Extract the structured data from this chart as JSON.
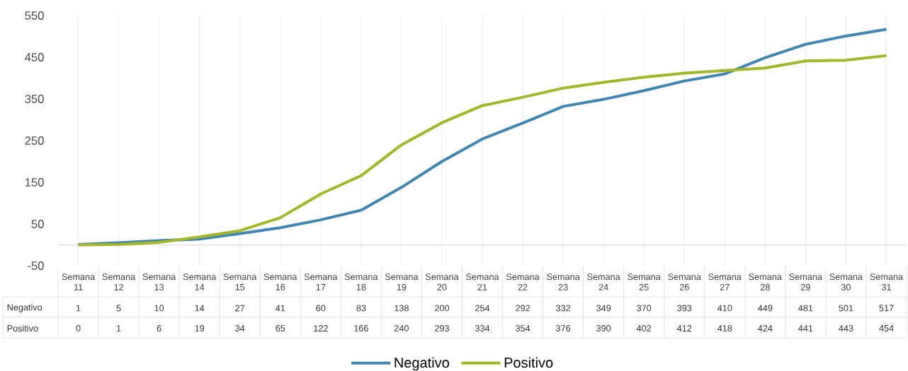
{
  "chart_data": {
    "type": "line",
    "categories": [
      "Semana 11",
      "Semana 12",
      "Semana 13",
      "Semana 14",
      "Semana 15",
      "Semana 16",
      "Semana 17",
      "Semana 18",
      "Semana 19",
      "Semana 20",
      "Semana 21",
      "Semana 22",
      "Semana 23",
      "Semana 24",
      "Semana 25",
      "Semana 26",
      "Semana 27",
      "Semana 28",
      "Semana 29",
      "Semana 30",
      "Semana 31"
    ],
    "series": [
      {
        "name": "Negativo",
        "color": "#3f87b2",
        "values": [
          1,
          5,
          10,
          14,
          27,
          41,
          60,
          83,
          138,
          200,
          254,
          292,
          332,
          349,
          370,
          393,
          410,
          449,
          481,
          501,
          517
        ]
      },
      {
        "name": "Positivo",
        "color": "#a4b72a",
        "values": [
          0,
          1,
          6,
          19,
          34,
          65,
          122,
          166,
          240,
          293,
          334,
          354,
          376,
          390,
          402,
          412,
          418,
          424,
          441,
          443,
          454
        ]
      }
    ],
    "ylim": [
      -50,
      550
    ],
    "yticks": [
      -50,
      50,
      150,
      250,
      350,
      450,
      550
    ],
    "grid": "x",
    "legend": "bottom",
    "data_labels": true
  }
}
